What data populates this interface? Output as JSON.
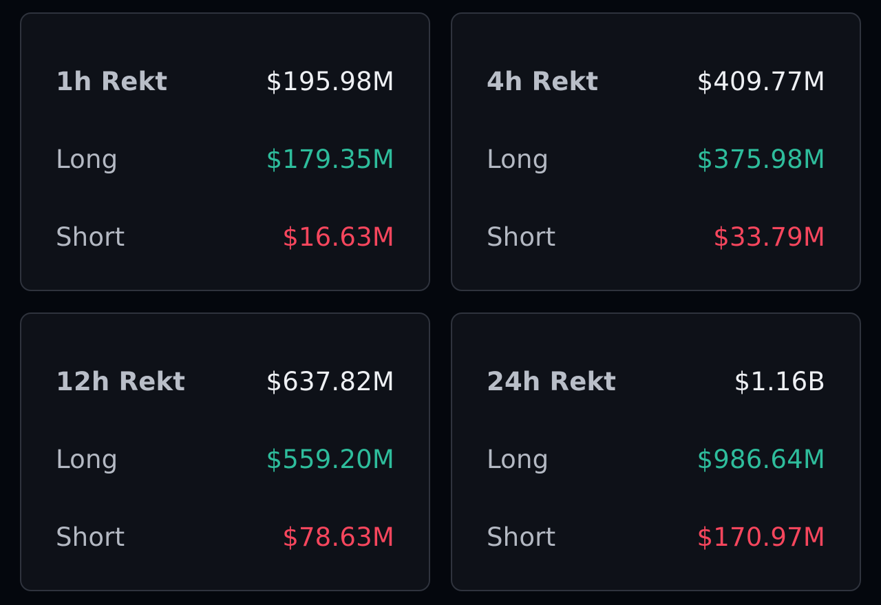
{
  "colors": {
    "background": "#04070d",
    "card": "#0e1118",
    "border": "#2f333d",
    "label": "#b4b9c3",
    "total": "#eef0f4",
    "long": "#2ebd9c",
    "short": "#f6465d"
  },
  "cards": [
    {
      "title": "1h Rekt",
      "total": "$195.98M",
      "long_label": "Long",
      "long": "$179.35M",
      "short_label": "Short",
      "short": "$16.63M"
    },
    {
      "title": "4h Rekt",
      "total": "$409.77M",
      "long_label": "Long",
      "long": "$375.98M",
      "short_label": "Short",
      "short": "$33.79M"
    },
    {
      "title": "12h Rekt",
      "total": "$637.82M",
      "long_label": "Long",
      "long": "$559.20M",
      "short_label": "Short",
      "short": "$78.63M"
    },
    {
      "title": "24h Rekt",
      "total": "$1.16B",
      "long_label": "Long",
      "long": "$986.64M",
      "short_label": "Short",
      "short": "$170.97M"
    }
  ]
}
